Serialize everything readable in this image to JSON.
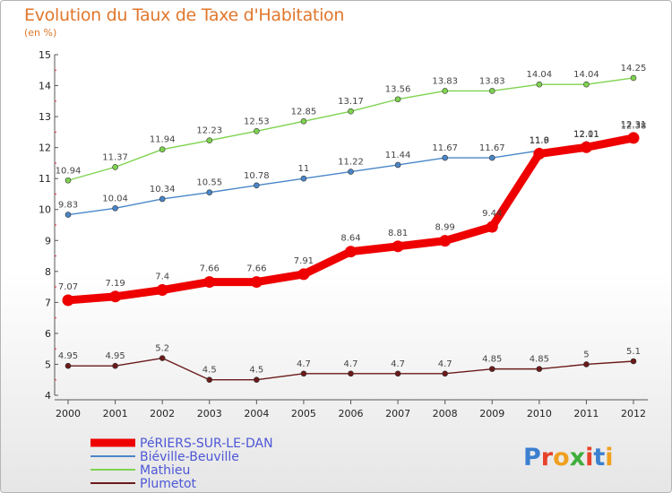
{
  "header": {
    "title": "Evolution du Taux de Taxe d'Habitation",
    "subtitle": "(en %)"
  },
  "logo": {
    "text": "Proxiti"
  },
  "chart_data": {
    "type": "line",
    "title": "Evolution du Taux de Taxe d'Habitation",
    "subtitle": "(en %)",
    "x": [
      "2000",
      "2001",
      "2002",
      "2003",
      "2004",
      "2005",
      "2006",
      "2007",
      "2008",
      "2009",
      "2010",
      "2011",
      "2012"
    ],
    "ylim": [
      4,
      15
    ],
    "yticks": [
      4,
      5,
      6,
      7,
      8,
      9,
      10,
      11,
      12,
      13,
      14,
      15
    ],
    "grid": false,
    "legend_position": "bottom-left",
    "series": [
      {
        "name": "Mathieu",
        "color": "#7ed34f",
        "values": [
          10.94,
          11.37,
          11.94,
          12.23,
          12.53,
          12.85,
          13.17,
          13.56,
          13.83,
          13.83,
          14.04,
          14.04,
          14.25
        ],
        "labels": [
          "10.94",
          "11.37",
          "11.94",
          "12.23",
          "12.53",
          "12.85",
          "13.17",
          "13.56",
          "13.83",
          "13.83",
          "14.04",
          "14.04",
          "14.25"
        ]
      },
      {
        "name": "Biéville-Beuville",
        "color": "#4a86c8",
        "values": [
          9.83,
          10.04,
          10.34,
          10.55,
          10.78,
          11,
          11.22,
          11.44,
          11.67,
          11.67,
          11.9,
          12.11,
          12.38
        ],
        "labels": [
          "9.83",
          "10.04",
          "10.34",
          "10.55",
          "10.78",
          "11",
          "11.22",
          "11.44",
          "11.67",
          "11.67",
          "11.9",
          "12.11",
          "12.38"
        ]
      },
      {
        "name": "PéRIERS-SUR-LE-DAN",
        "color": "#ee0000",
        "values": [
          7.07,
          7.19,
          7.4,
          7.66,
          7.66,
          7.91,
          8.64,
          8.81,
          8.99,
          9.44,
          11.8,
          12.01,
          12.31
        ],
        "labels": [
          "7.07",
          "7.19",
          "7.4",
          "7.66",
          "7.66",
          "7.91",
          "8.64",
          "8.81",
          "8.99",
          "9.44",
          "11.8",
          "12.01",
          "12.31"
        ]
      },
      {
        "name": "Plumetot",
        "color": "#6b1a1a",
        "values": [
          4.95,
          4.95,
          5.2,
          4.5,
          4.5,
          4.7,
          4.7,
          4.7,
          4.7,
          4.85,
          4.85,
          5,
          5.1
        ],
        "labels": [
          "4.95",
          "4.95",
          "5.2",
          "4.5",
          "4.5",
          "4.7",
          "4.7",
          "4.7",
          "4.7",
          "4.85",
          "4.85",
          "5",
          "5.1"
        ]
      }
    ],
    "legend": [
      "PéRIERS-SUR-LE-DAN",
      "Biéville-Beuville",
      "Mathieu",
      "Plumetot"
    ]
  }
}
